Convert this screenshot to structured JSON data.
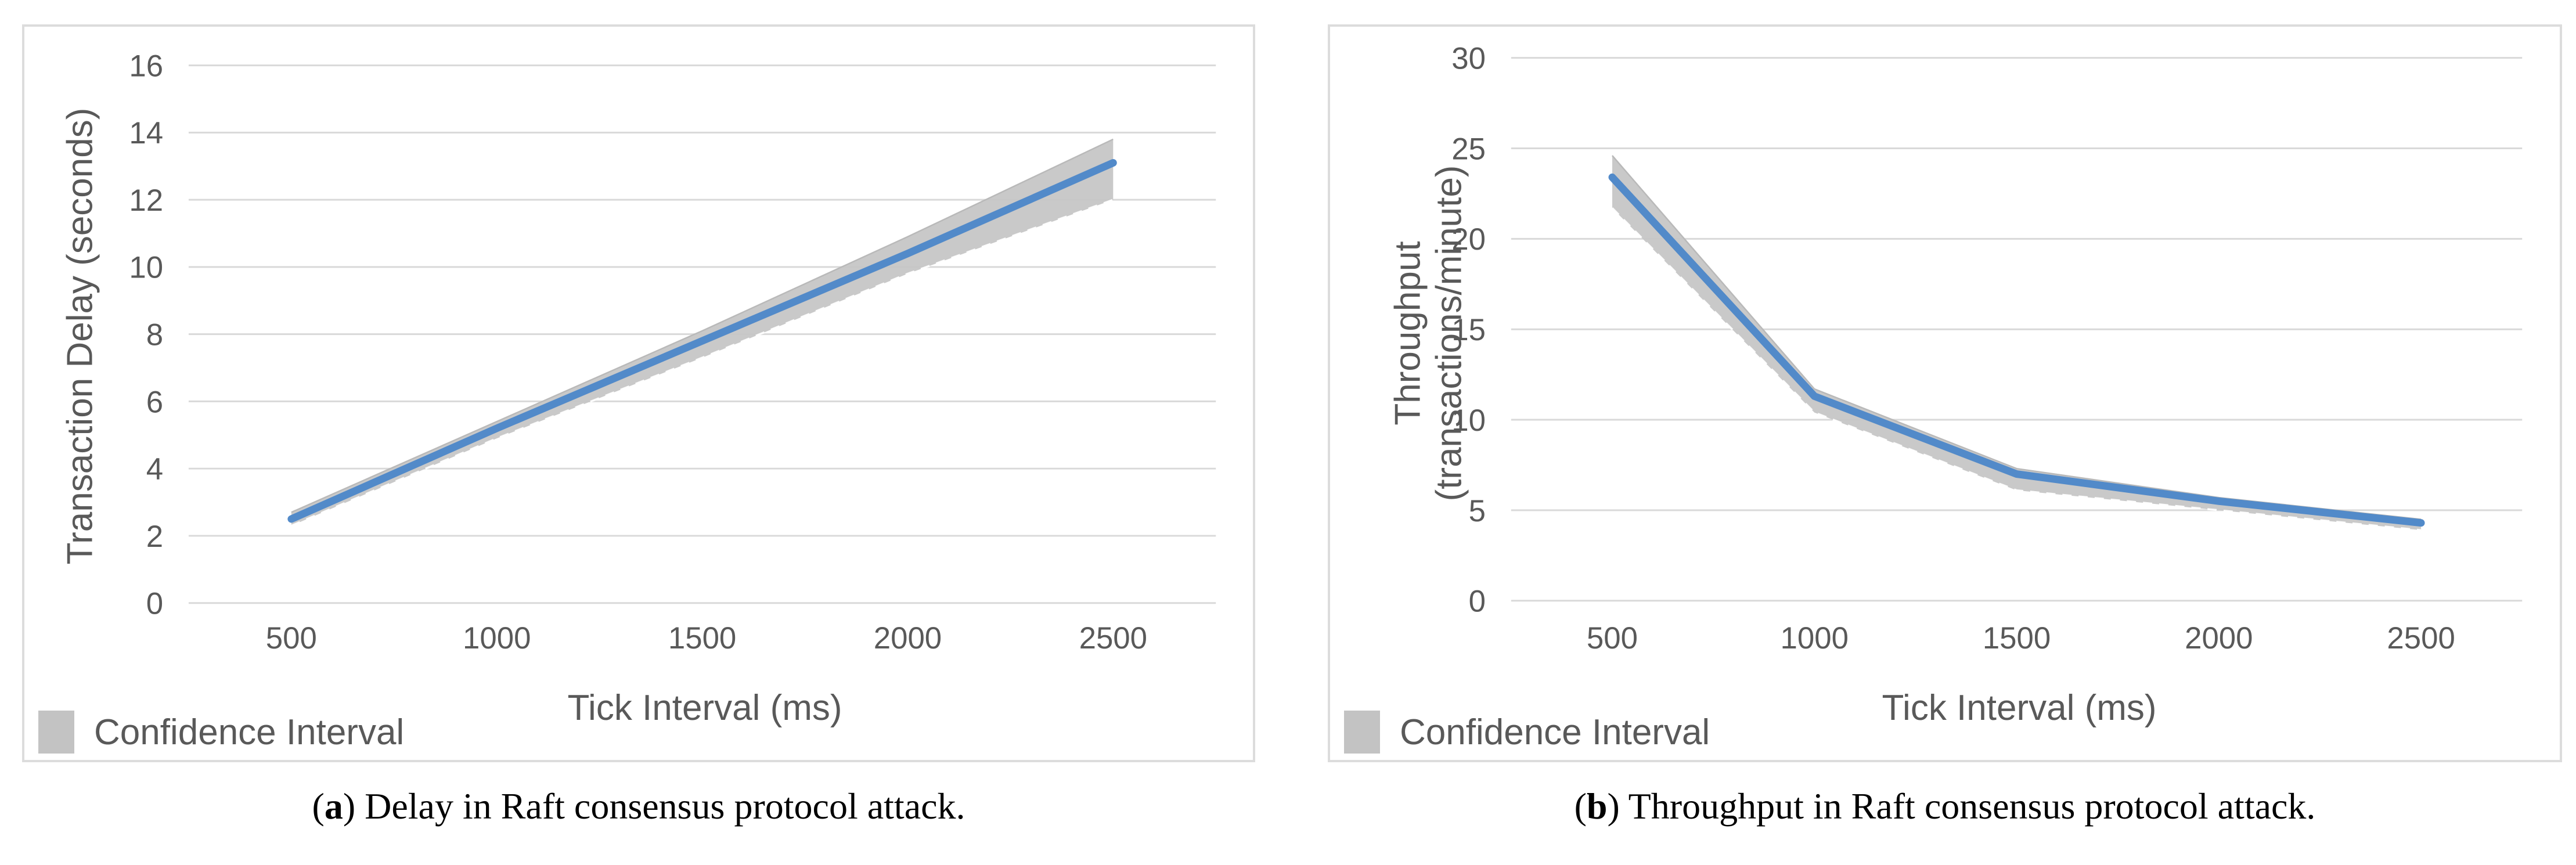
{
  "figure": {
    "description_visible_text_only": true
  },
  "colors": {
    "line": "#528ac9",
    "band": "#c6c6c6",
    "band_edge": "#b9b9b9",
    "band_inner_dash": "#ffffff",
    "gridline": "#d9d9d9",
    "axis_text": "#595959",
    "panel_border": "#dcdcdc",
    "legend_swatch": "#c3c3c3",
    "caption_text": "#000000"
  },
  "chart_data": [
    {
      "panel": "a",
      "type": "line",
      "categories": [
        500,
        1000,
        1500,
        2000,
        2500
      ],
      "series": [
        {
          "name": "Transaction Delay",
          "values": [
            2.5,
            5.2,
            7.8,
            10.4,
            13.1
          ]
        }
      ],
      "ci_upper": [
        2.7,
        5.4,
        8.1,
        10.9,
        13.8
      ],
      "ci_lower": [
        2.3,
        4.9,
        7.3,
        9.8,
        12.0
      ],
      "title": "",
      "xlabel": "Tick Interval (ms)",
      "ylabel": "Transaction Delay (seconds)",
      "yticks": [
        0,
        2,
        4,
        6,
        8,
        10,
        12,
        14,
        16
      ],
      "ylim": [
        0,
        16
      ],
      "grid": "horizontal",
      "legend_label": "Confidence Interval",
      "legend_position": "bottom-left",
      "caption": {
        "open": "(",
        "letter": "a",
        "close": ") ",
        "text": "Delay in Raft consensus protocol attack."
      }
    },
    {
      "panel": "b",
      "type": "line",
      "categories": [
        500,
        1000,
        1500,
        2000,
        2500
      ],
      "series": [
        {
          "name": "Throughput",
          "values": [
            23.4,
            11.3,
            7.0,
            5.5,
            4.3
          ]
        }
      ],
      "ci_upper": [
        24.6,
        11.7,
        7.3,
        5.7,
        4.5
      ],
      "ci_lower": [
        21.7,
        10.4,
        6.1,
        5.0,
        3.9
      ],
      "title": "",
      "xlabel": "Tick Interval (ms)",
      "ylabel": "Throughput\n(transactions/minute)",
      "yticks": [
        0,
        5,
        10,
        15,
        20,
        25,
        30
      ],
      "ylim": [
        0,
        30
      ],
      "grid": "horizontal",
      "legend_label": "Confidence Interval",
      "legend_position": "bottom-left",
      "caption": {
        "open": "(",
        "letter": "b",
        "close": ") ",
        "text": "Throughput in Raft consensus protocol attack."
      }
    }
  ]
}
